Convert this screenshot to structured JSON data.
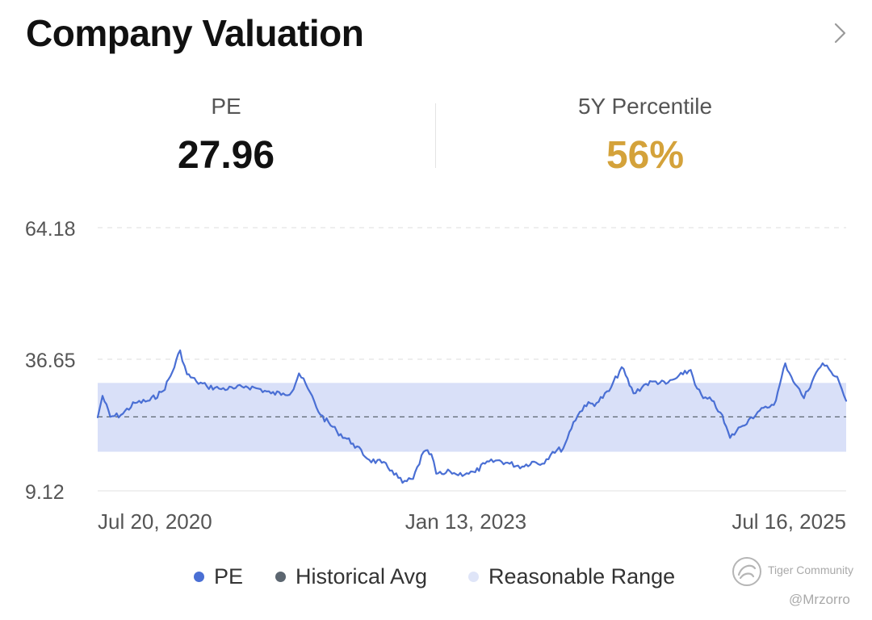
{
  "header": {
    "title": "Company Valuation",
    "nav_icon": "chevron-right-icon"
  },
  "metrics": {
    "pe": {
      "label": "PE",
      "value": "27.96"
    },
    "percentile": {
      "label": "5Y Percentile",
      "value": "56%"
    }
  },
  "colors": {
    "pe_line": "#4a6fd4",
    "historical_avg": "#5c6670",
    "reasonable_range": "#d9e0f8",
    "percentile_value": "#d4a23a"
  },
  "legend": [
    {
      "label": "PE",
      "color": "#4a6fd4"
    },
    {
      "label": "Historical Avg",
      "color": "#5c6670"
    },
    {
      "label": "Reasonable Range",
      "color": "#dfe5f8"
    }
  ],
  "watermark": {
    "name": "Tiger Community",
    "user": "@Mrzorro"
  },
  "chart_data": {
    "type": "line",
    "x_start": "2020-07-20",
    "x_end": "2025-08-07",
    "x_ticks": [
      {
        "date": "2020-07-20",
        "label": "Jul 20, 2020"
      },
      {
        "date": "2023-01-13",
        "label": "Jan 13, 2023"
      },
      {
        "date": "2025-07-16",
        "label": "Jul 16, 2025"
      }
    ],
    "y_ticks": [
      {
        "value": 64.18,
        "label": "64.18"
      },
      {
        "value": 36.65,
        "label": "36.65"
      },
      {
        "value": 9.12,
        "label": "9.12"
      }
    ],
    "ylim": [
      9.12,
      64.18
    ],
    "grid": true,
    "historical_avg": 24.6,
    "reasonable_range": [
      17.3,
      31.7
    ],
    "series": [
      {
        "name": "PE",
        "x": [
          "2020-07-20",
          "2020-08-01",
          "2020-08-20",
          "2020-09-15",
          "2020-10-20",
          "2020-11-25",
          "2020-12-28",
          "2021-01-20",
          "2021-02-08",
          "2021-02-25",
          "2021-03-20",
          "2021-04-15",
          "2021-05-15",
          "2021-06-20",
          "2021-07-20",
          "2021-08-20",
          "2021-09-20",
          "2021-10-20",
          "2021-11-10",
          "2021-11-28",
          "2021-12-20",
          "2022-01-20",
          "2022-03-01",
          "2022-04-10",
          "2022-05-20",
          "2022-06-20",
          "2022-07-15",
          "2022-08-10",
          "2022-09-05",
          "2022-10-01",
          "2022-10-20",
          "2022-11-01",
          "2022-11-20",
          "2022-12-05",
          "2022-12-20",
          "2023-01-15",
          "2023-02-05",
          "2023-03-01",
          "2023-04-01",
          "2023-05-01",
          "2023-06-01",
          "2023-06-25",
          "2023-07-20",
          "2023-08-15",
          "2023-09-10",
          "2023-10-05",
          "2023-11-01",
          "2023-12-01",
          "2024-01-01",
          "2024-02-01",
          "2024-03-01",
          "2024-04-01",
          "2024-04-25",
          "2024-05-20",
          "2024-06-10",
          "2024-07-01",
          "2024-07-20",
          "2024-08-05",
          "2024-08-20",
          "2024-09-10",
          "2024-10-01",
          "2024-10-25",
          "2024-11-20",
          "2024-12-10",
          "2025-01-01",
          "2025-01-25",
          "2025-02-15",
          "2025-03-10",
          "2025-03-25",
          "2025-04-08",
          "2025-04-25",
          "2025-05-20",
          "2025-06-10",
          "2025-07-01",
          "2025-07-16",
          "2025-08-07"
        ],
        "y": [
          24.5,
          29.0,
          24.6,
          25.0,
          27.5,
          28.0,
          30.0,
          34.0,
          38.5,
          33.5,
          32.0,
          31.0,
          30.5,
          30.5,
          31.0,
          30.5,
          29.5,
          29.5,
          29.8,
          33.7,
          30.5,
          25.0,
          21.6,
          19.0,
          15.6,
          15.0,
          13.4,
          10.8,
          11.6,
          17.3,
          16.8,
          12.7,
          12.6,
          13.2,
          12.6,
          12.8,
          13.0,
          14.8,
          15.5,
          14.8,
          14.2,
          15.2,
          14.8,
          17.3,
          18.0,
          23.5,
          27.0,
          27.5,
          30.0,
          35.0,
          29.5,
          31.5,
          32.0,
          31.5,
          32.5,
          33.5,
          34.4,
          30.5,
          28.5,
          28.0,
          25.5,
          20.2,
          22.5,
          24.0,
          25.6,
          26.5,
          28.0,
          35.8,
          33.0,
          31.0,
          28.5,
          33.0,
          35.8,
          34.0,
          33.0,
          27.96
        ]
      }
    ]
  }
}
